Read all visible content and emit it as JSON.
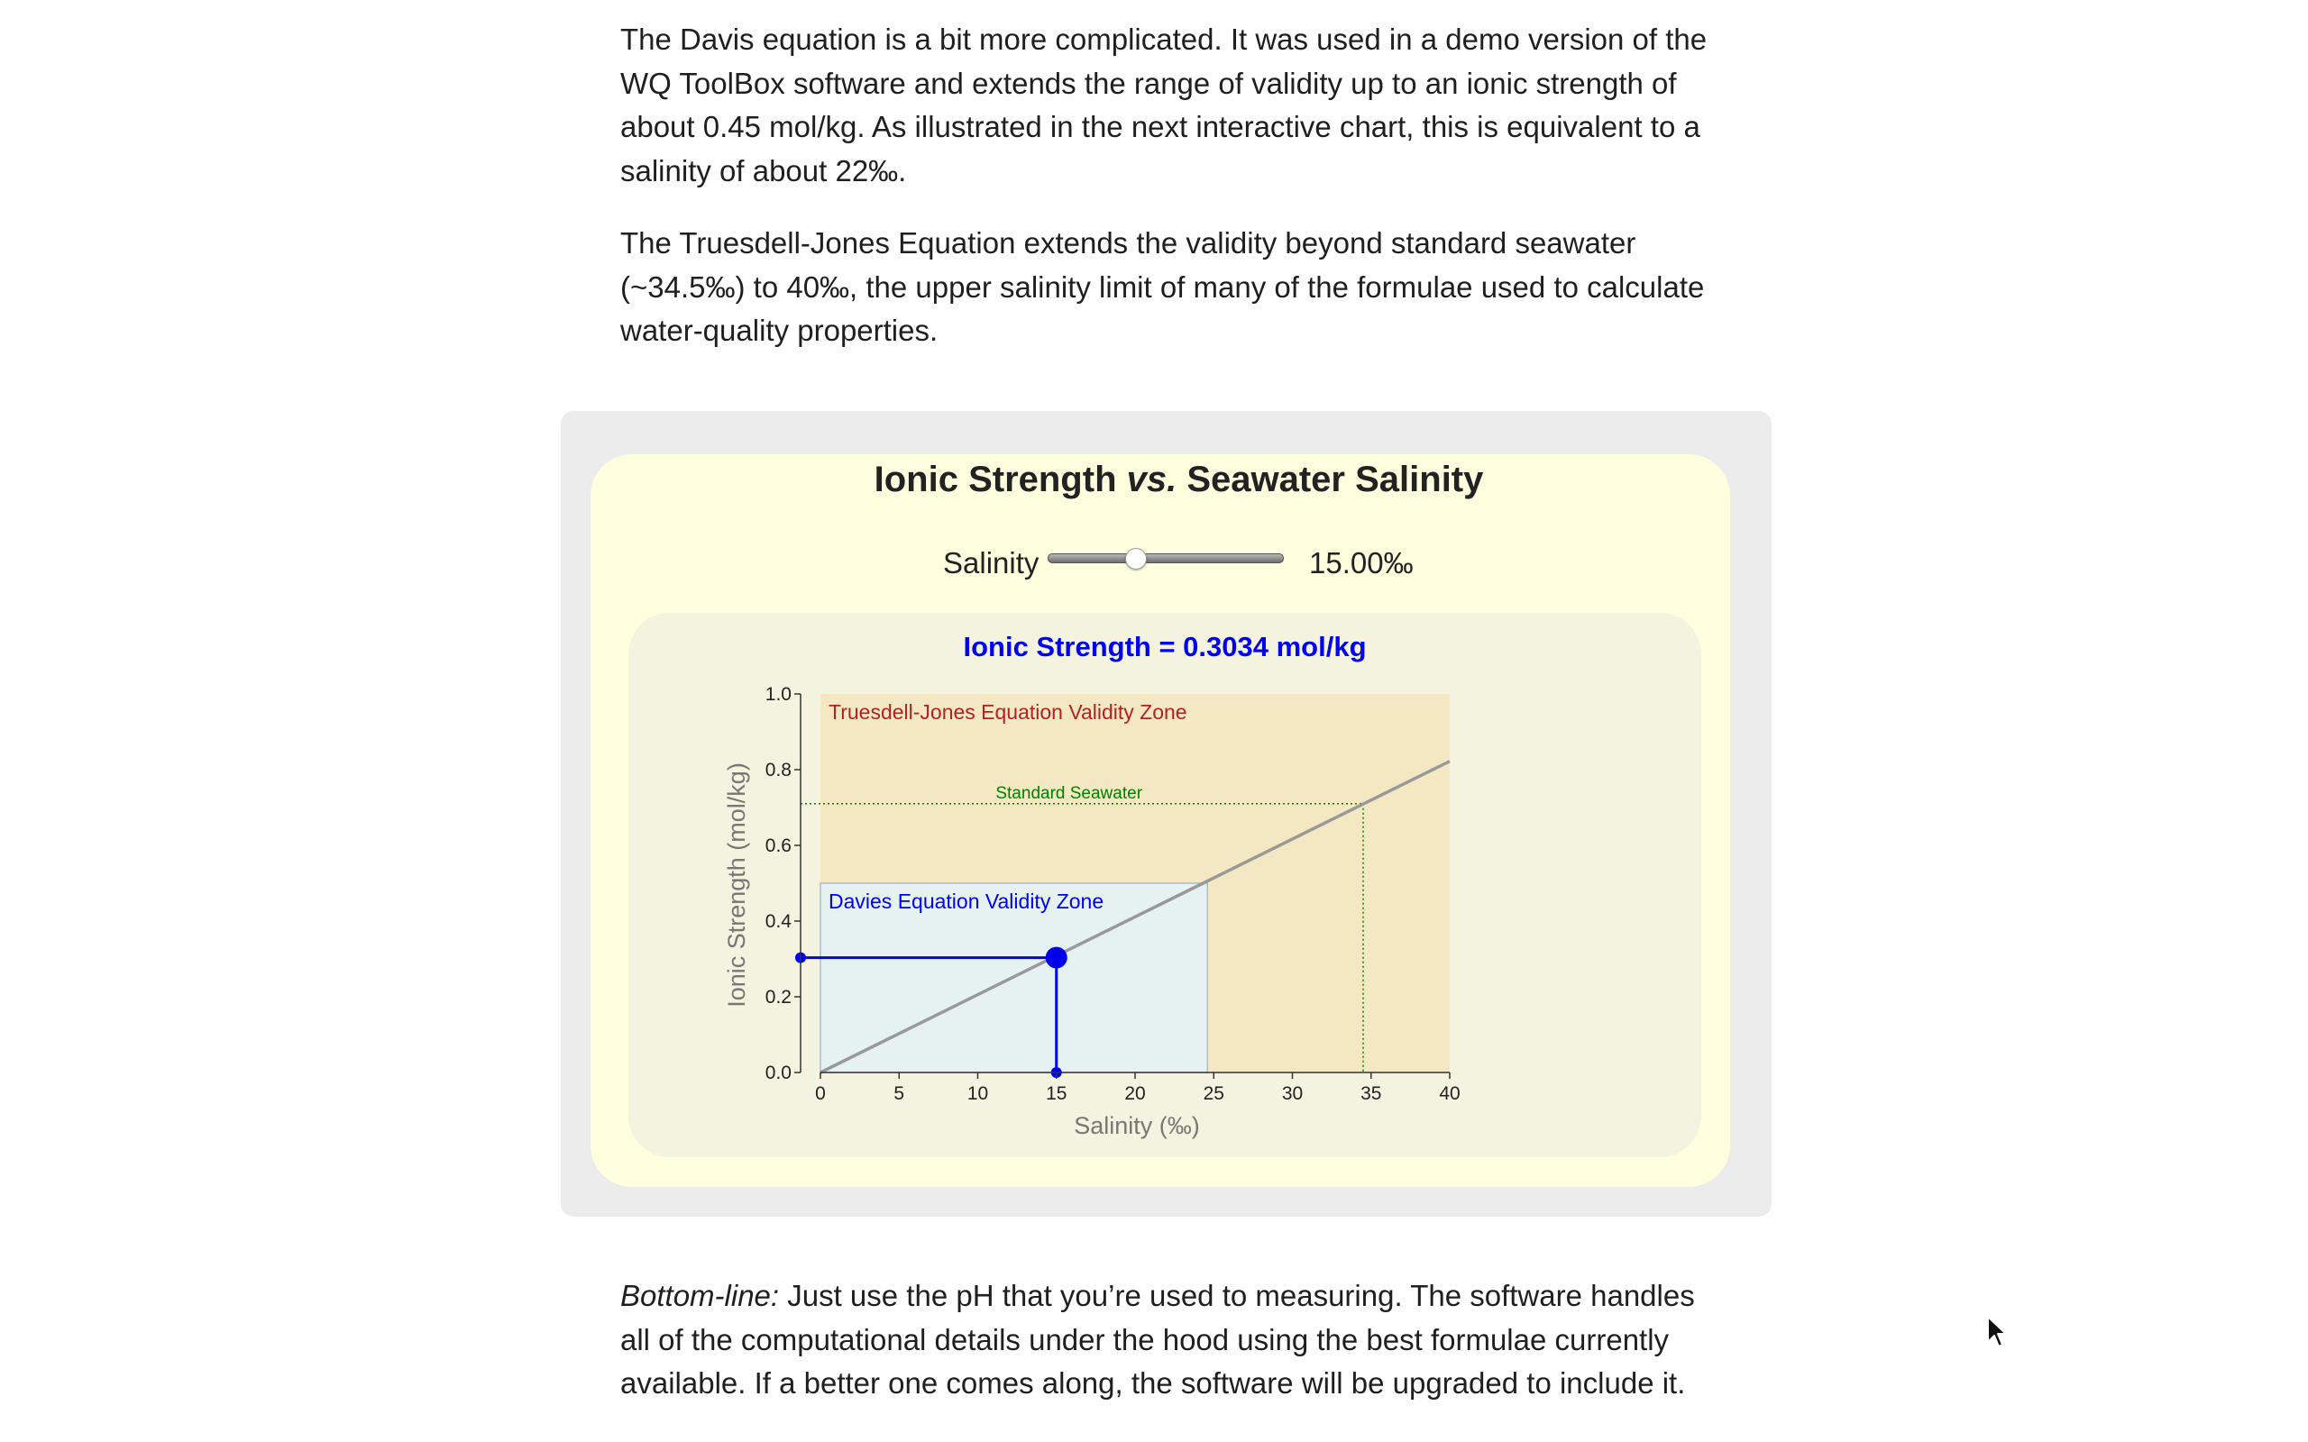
{
  "paragraphs": {
    "p1": "The Davis equation is a bit more complicated. It was used in a demo version of the WQ ToolBox software and extends the range of validity up to an ionic strength of about 0.45 mol/kg. As illustrated in the next interactive chart, this is equivalent to a salinity of about 22‰.",
    "p2": "The Truesdell-Jones Equation extends the validity beyond standard seawater (~34.5‰) to 40‰, the upper salinity limit of many of the formulae used to calculate water-quality properties.",
    "p3_lead": "Bottom-line:",
    "p3_rest": " Just use the pH that you’re used to measuring. The software handles all of the computational details under the hood using the best formulae currently available. If a better one comes along, the software will be upgraded to include it."
  },
  "widget": {
    "title_a": "Ionic Strength ",
    "title_vs": "vs.",
    "title_b": " Seawater Salinity",
    "slider_label": "Salinity",
    "slider_value_text": "15.00‰",
    "slider_fraction": 0.375,
    "readout": "Ionic Strength = 0.3034 mol/kg"
  },
  "colors": {
    "readout": "#0000ee",
    "truesdell_zone": "#f3e8c2",
    "truesdell_label": "#b22222",
    "davies_zone": "#e6f1f1",
    "davies_label": "#0000ee",
    "seawater": "#008000",
    "line": "#999999",
    "marker": "#0000ee"
  },
  "chart_data": {
    "type": "line",
    "xlabel": "Salinity (‰)",
    "ylabel": "Ionic Strength (mol/kg)",
    "xlim": [
      0,
      40
    ],
    "ylim": [
      0,
      1.0
    ],
    "x_ticks": [
      "0",
      "5",
      "10",
      "15",
      "20",
      "25",
      "30",
      "35",
      "40"
    ],
    "y_ticks": [
      "0.0",
      "0.2",
      "0.4",
      "0.6",
      "0.8",
      "1.0"
    ],
    "series": [
      {
        "x": [
          0,
          40
        ],
        "y": [
          0,
          0.8223
        ]
      }
    ],
    "zones": [
      {
        "label": "Truesdell-Jones Equation Validity Zone",
        "x": [
          0,
          40
        ],
        "y": [
          0,
          1.0
        ]
      },
      {
        "label": "Davies Equation Validity Zone",
        "x": [
          0,
          24.6
        ],
        "y": [
          0,
          0.5
        ]
      }
    ],
    "reference": {
      "label": "Standard Seawater",
      "x": 34.5,
      "y": 0.71
    },
    "selected_point": {
      "x": 15,
      "y": 0.3034
    }
  }
}
